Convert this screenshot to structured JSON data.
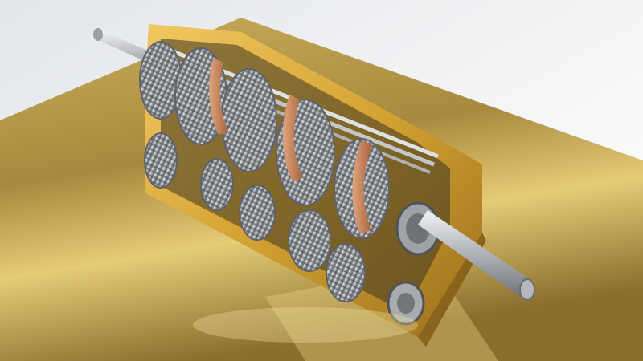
{
  "scene": {
    "subject": "gearbox-cutaway",
    "colors": {
      "background": "#f2f3f5",
      "floor_light": "#d8bf6a",
      "floor_dark": "#8f7330",
      "housing": "#d9a93a",
      "housing_dark": "#9c7220",
      "gear": "#b9bcc0",
      "gear_dark": "#5d6166",
      "copper": "#c98a62",
      "rod": "#d7dadc",
      "shaft": "#c9ccd0"
    }
  }
}
